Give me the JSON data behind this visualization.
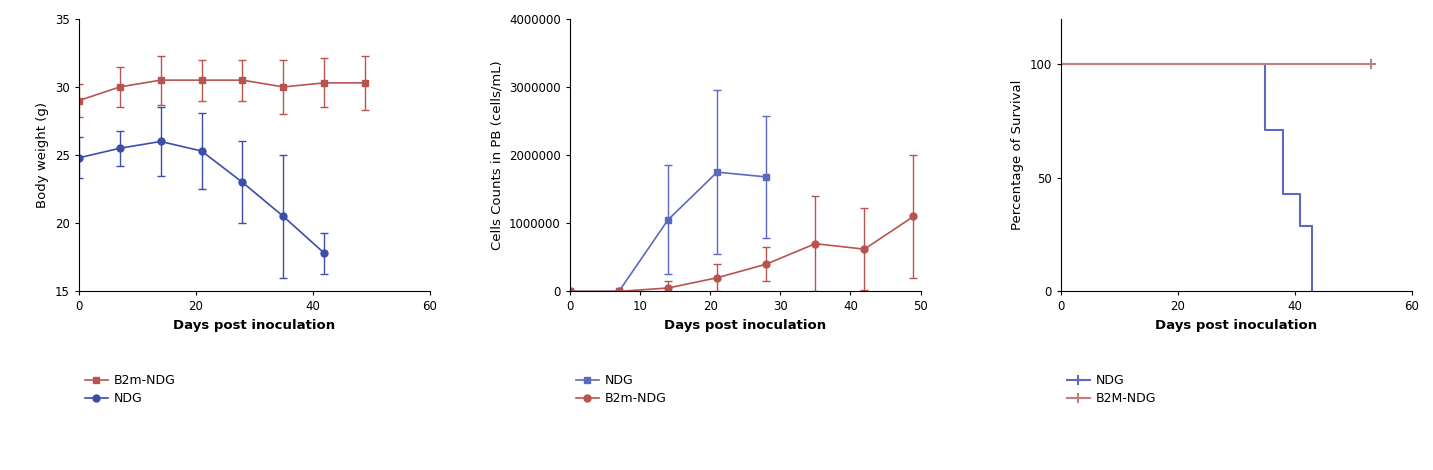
{
  "plot1": {
    "xlabel": "Days post inoculation",
    "ylabel": "Body weight (g)",
    "xlim": [
      0,
      60
    ],
    "ylim": [
      15,
      35
    ],
    "yticks": [
      15,
      20,
      25,
      30,
      35
    ],
    "xticks": [
      0,
      20,
      40,
      60
    ],
    "b2m_ndg": {
      "x": [
        0,
        7,
        14,
        21,
        28,
        35,
        42,
        49
      ],
      "y": [
        29.0,
        30.0,
        30.5,
        30.5,
        30.5,
        30.0,
        30.3,
        30.3
      ],
      "yerr": [
        1.2,
        1.5,
        1.8,
        1.5,
        1.5,
        2.0,
        1.8,
        2.0
      ],
      "color": "#b85450",
      "marker": "s",
      "label": "B2m-NDG"
    },
    "ndg": {
      "x": [
        0,
        7,
        14,
        21,
        28,
        35,
        42
      ],
      "y": [
        24.8,
        25.5,
        26.0,
        25.3,
        23.0,
        20.5,
        17.8
      ],
      "yerr": [
        1.5,
        1.3,
        2.5,
        2.8,
        3.0,
        4.5,
        1.5
      ],
      "color": "#3d4ea8",
      "marker": "o",
      "label": "NDG"
    }
  },
  "plot2": {
    "xlabel": "Days post inoculation",
    "ylabel": "Cells Counts in PB (cells/mL)",
    "xlim": [
      0,
      50
    ],
    "ylim": [
      0,
      4000000
    ],
    "yticks": [
      0,
      1000000,
      2000000,
      3000000,
      4000000
    ],
    "xticks": [
      0,
      10,
      20,
      30,
      40,
      50
    ],
    "ndg": {
      "x": [
        0,
        7,
        14,
        21,
        28
      ],
      "y": [
        0,
        0,
        1050000,
        1750000,
        1680000
      ],
      "yerr": [
        0,
        0,
        800000,
        1200000,
        900000
      ],
      "color": "#5b6abf",
      "marker": "s",
      "label": "NDG"
    },
    "b2m_ndg": {
      "x": [
        0,
        7,
        14,
        21,
        28,
        35,
        42,
        49
      ],
      "y": [
        0,
        0,
        50000,
        200000,
        400000,
        700000,
        620000,
        1100000
      ],
      "yerr": [
        0,
        0,
        100000,
        200000,
        250000,
        700000,
        600000,
        900000
      ],
      "color": "#b85450",
      "marker": "o",
      "label": "B2m-NDG"
    }
  },
  "plot3": {
    "xlabel": "Days post inoculation",
    "ylabel": "Percentage of Survival",
    "xlim": [
      0,
      60
    ],
    "ylim": [
      0,
      120
    ],
    "yticks": [
      0,
      50,
      100
    ],
    "xticks": [
      0,
      20,
      40,
      60
    ],
    "ndg": {
      "x": [
        0,
        35,
        35,
        38,
        38,
        41,
        41,
        43,
        43
      ],
      "y": [
        100,
        100,
        71,
        71,
        43,
        43,
        29,
        29,
        0
      ],
      "color": "#5b6abf",
      "label": "NDG"
    },
    "b2m_ndg": {
      "x": [
        0,
        43,
        53
      ],
      "y": [
        100,
        100,
        100
      ],
      "color": "#c08080",
      "label": "B2M-NDG"
    }
  }
}
